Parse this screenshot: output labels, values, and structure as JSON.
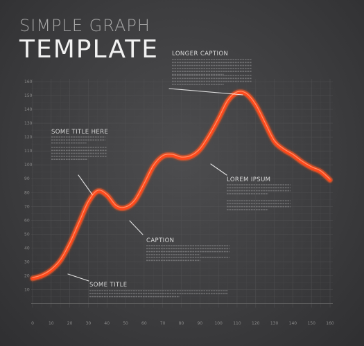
{
  "header": {
    "title_small": "SIMPLE GRAPH",
    "title_big": "TEMPLATE"
  },
  "colors": {
    "line": "#ff4a1a",
    "line_glow": "#ff7a3a",
    "pointer": "#ffffff",
    "grid": "#505052"
  },
  "annotations": [
    {
      "id": "longer-caption",
      "title": "LONGER CAPTION"
    },
    {
      "id": "some-title-here",
      "title": "SOME TITLE HERE"
    },
    {
      "id": "lorem-ipsum",
      "title": "LOREM IPSUM"
    },
    {
      "id": "caption",
      "title": "CAPTION"
    },
    {
      "id": "some-title",
      "title": "SOME TITLE"
    }
  ],
  "chart_data": {
    "type": "line",
    "title": "SIMPLE GRAPH TEMPLATE",
    "xlabel": "",
    "ylabel": "",
    "xlim": [
      0,
      160
    ],
    "ylim": [
      0,
      160
    ],
    "x_ticks": [
      0,
      10,
      20,
      30,
      40,
      50,
      60,
      70,
      80,
      90,
      100,
      110,
      120,
      130,
      140,
      150,
      160
    ],
    "y_ticks": [
      10,
      20,
      30,
      40,
      50,
      60,
      70,
      80,
      90,
      100,
      110,
      120,
      130,
      140,
      150,
      160
    ],
    "grid": true,
    "series": [
      {
        "x": [
          0,
          5,
          10,
          15,
          20,
          25,
          30,
          35,
          40,
          45,
          50,
          55,
          60,
          65,
          70,
          75,
          80,
          85,
          90,
          95,
          100,
          105,
          110,
          115,
          120,
          125,
          130,
          135,
          140,
          145,
          150,
          155,
          160
        ],
        "y": [
          18,
          20,
          24,
          31,
          43,
          58,
          73,
          81,
          78,
          70,
          69,
          74,
          86,
          99,
          106,
          107,
          105,
          106,
          111,
          121,
          133,
          146,
          152,
          151,
          143,
          130,
          117,
          111,
          107,
          102,
          98,
          95,
          89
        ]
      }
    ]
  }
}
